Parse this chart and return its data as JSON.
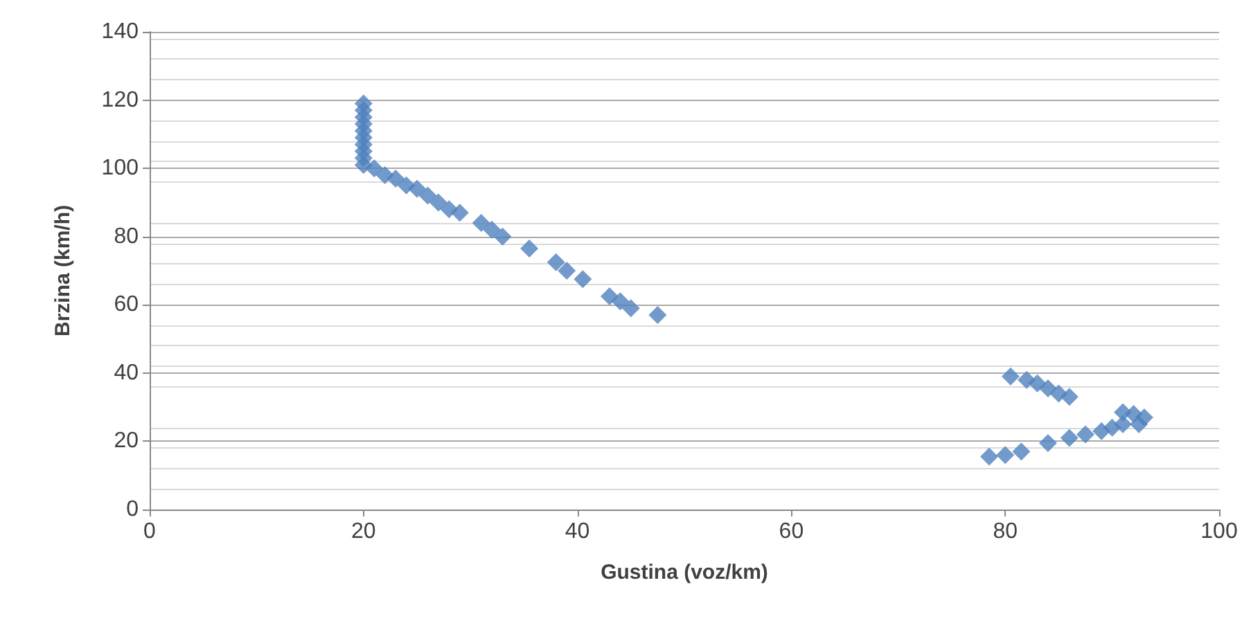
{
  "chart_data": {
    "type": "scatter",
    "xlabel": "Gustina (voz/km)",
    "ylabel": "Brzina (km/h)",
    "xlim": [
      0,
      100
    ],
    "xticks": [
      0,
      20,
      40,
      60,
      80,
      100
    ],
    "ylim": [
      0,
      140
    ],
    "yticks": [
      0,
      20,
      40,
      60,
      80,
      100,
      120,
      140
    ],
    "grid": "y",
    "marker": "diamond",
    "series": [
      {
        "color": "#4f81bd",
        "x": [
          20,
          20,
          20,
          20,
          20,
          20,
          20,
          20,
          20,
          20,
          21,
          22,
          23,
          24,
          25,
          26,
          27,
          28,
          29,
          31,
          32,
          33,
          35.5,
          38,
          39,
          40.5,
          43,
          44,
          45,
          47.5,
          80.5,
          82,
          83,
          84,
          85,
          86,
          91,
          92,
          93,
          92.5,
          91,
          90,
          89,
          87.5,
          86,
          84,
          81.5,
          80,
          78.5
        ],
        "values": [
          119,
          117,
          115,
          113,
          111,
          109,
          107,
          105,
          103,
          101,
          100,
          98,
          97,
          95,
          94,
          92,
          90,
          88,
          87,
          84,
          82,
          80,
          76.5,
          72.5,
          70,
          67.5,
          62.5,
          61,
          59,
          57,
          39,
          38,
          37,
          35.5,
          34,
          33,
          28.5,
          28,
          27,
          25,
          25,
          24,
          23,
          22,
          21,
          19.5,
          17,
          16,
          15.5
        ]
      }
    ]
  }
}
